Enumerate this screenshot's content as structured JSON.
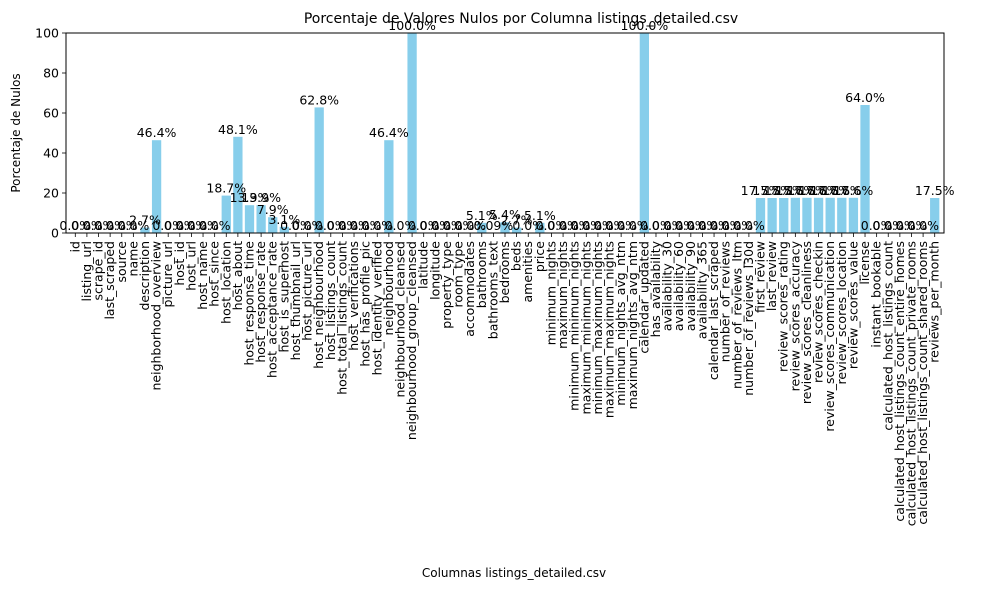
{
  "chart_data": {
    "type": "bar",
    "title": "Porcentaje de Valores Nulos por Columna listings_detailed.csv",
    "xlabel": "Columnas listings_detailed.csv",
    "ylabel": "Porcentaje de Nulos",
    "ylim": [
      0,
      100
    ],
    "yticks": [
      "0",
      "20",
      "40",
      "60",
      "80",
      "100"
    ],
    "bar_color": "#87ceeb",
    "categories": [
      "id",
      "listing_url",
      "scrape_id",
      "last_scraped",
      "source",
      "name",
      "description",
      "neighborhood_overview",
      "picture_url",
      "host_id",
      "host_url",
      "host_name",
      "host_since",
      "host_location",
      "host_about",
      "host_response_time",
      "host_response_rate",
      "host_acceptance_rate",
      "host_is_superhost",
      "host_thumbnail_url",
      "host_picture_url",
      "host_neighbourhood",
      "host_listings_count",
      "host_total_listings_count",
      "host_verifications",
      "host_has_profile_pic",
      "host_identity_verified",
      "neighbourhood",
      "neighbourhood_cleansed",
      "neighbourhood_group_cleansed",
      "latitude",
      "longitude",
      "property_type",
      "room_type",
      "accommodates",
      "bathrooms",
      "bathrooms_text",
      "bedrooms",
      "beds",
      "amenities",
      "price",
      "minimum_nights",
      "maximum_nights",
      "minimum_minimum_nights",
      "maximum_minimum_nights",
      "minimum_maximum_nights",
      "maximum_maximum_nights",
      "minimum_nights_avg_ntm",
      "maximum_nights_avg_ntm",
      "calendar_updated",
      "has_availability",
      "availability_30",
      "availability_60",
      "availability_90",
      "availability_365",
      "calendar_last_scraped",
      "number_of_reviews",
      "number_of_reviews_ltm",
      "number_of_reviews_l30d",
      "first_review",
      "last_review",
      "review_scores_rating",
      "review_scores_accuracy",
      "review_scores_cleanliness",
      "review_scores_checkin",
      "review_scores_communication",
      "review_scores_location",
      "review_scores_value",
      "license",
      "instant_bookable",
      "calculated_host_listings_count",
      "calculated_host_listings_count_entire_homes",
      "calculated_host_listings_count_private_rooms",
      "calculated_host_listings_count_shared_rooms",
      "reviews_per_month"
    ],
    "values": [
      0,
      0,
      0,
      0,
      0,
      0,
      2.7,
      46.4,
      0,
      0,
      0,
      0,
      0,
      18.7,
      48.1,
      13.9,
      13.9,
      7.9,
      3.1,
      0,
      0,
      62.8,
      0,
      0,
      0,
      0,
      0,
      46.4,
      0,
      100,
      0,
      0,
      0,
      0,
      0,
      5.1,
      0.09,
      5.4,
      2.7,
      0,
      5.1,
      0,
      0,
      0,
      0,
      0,
      0,
      0,
      0,
      100,
      0,
      0,
      0,
      0,
      0,
      0,
      0,
      0,
      0,
      17.5,
      17.5,
      17.5,
      17.6,
      17.6,
      17.6,
      17.6,
      17.6,
      17.6,
      64.0,
      0,
      0,
      0,
      0,
      0,
      17.5
    ],
    "labels": [
      "0.0%",
      "0.0%",
      "0.0%",
      "0.0%",
      "0.0%",
      "0.0%",
      "2.7%",
      "46.4%",
      "0.0%",
      "0.0%",
      "0.0%",
      "0.0%",
      "0.0%",
      "18.7%",
      "48.1%",
      "13.9%",
      "13.9%",
      "7.9%",
      "3.1%",
      "0.0%",
      "0.0%",
      "62.8%",
      "0.0%",
      "0.0%",
      "0.0%",
      "0.0%",
      "0.0%",
      "46.4%",
      "0.0%",
      "100.0%",
      "0.0%",
      "0.0%",
      "0.0%",
      "0.0%",
      "0.0%",
      "5.1%",
      "0.09%",
      "5.4%",
      "2.7%",
      "0.0%",
      "5.1%",
      "0.0%",
      "0.0%",
      "0.0%",
      "0.0%",
      "0.0%",
      "0.0%",
      "0.0%",
      "0.0%",
      "100.0%",
      "0.0%",
      "0.0%",
      "0.0%",
      "0.0%",
      "0.0%",
      "0.0%",
      "0.0%",
      "0.0%",
      "0.0%",
      "17.5%",
      "17.5%",
      "17.5%",
      "17.6%",
      "17.6%",
      "17.6%",
      "17.6%",
      "17.6%",
      "17.6%",
      "64.0%",
      "0.0%",
      "0.0%",
      "0.0%",
      "0.0%",
      "0.0%",
      "17.5%"
    ],
    "grid": false
  }
}
